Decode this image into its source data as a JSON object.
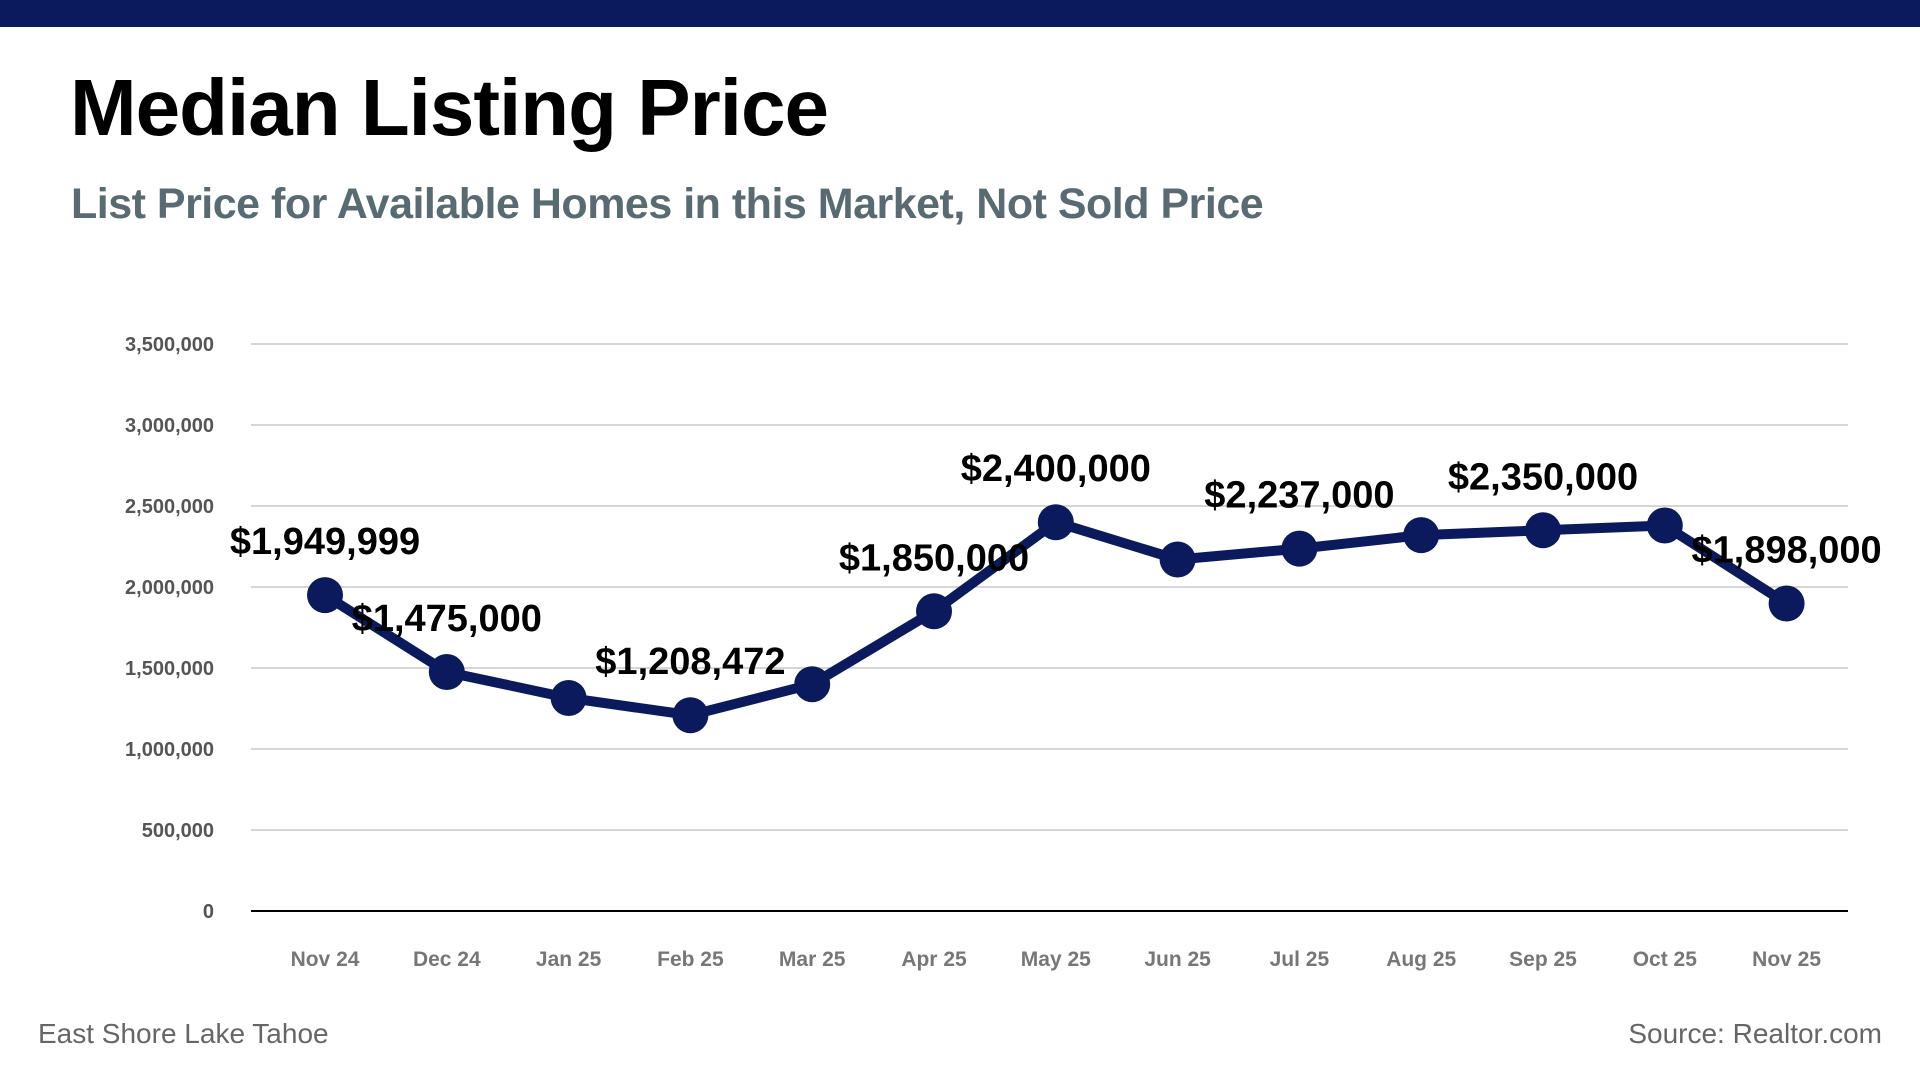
{
  "header": {
    "title": "Median Listing Price",
    "subtitle": "List Price for Available Homes in this Market, Not Sold Price"
  },
  "footer": {
    "location": "East Shore Lake Tahoe",
    "source": "Source: Realtor.com"
  },
  "colors": {
    "accent": "#0a1a5c",
    "grid": "#bdbdbd",
    "axis": "#000000"
  },
  "chart_data": {
    "type": "line",
    "title": "Median Listing Price",
    "xlabel": "",
    "ylabel": "",
    "ylim": [
      0,
      3500000
    ],
    "yticks": [
      0,
      500000,
      1000000,
      1500000,
      2000000,
      2500000,
      3000000,
      3500000
    ],
    "ytick_labels": [
      "0",
      "500,000",
      "1,000,000",
      "1,500,000",
      "2,000,000",
      "2,500,000",
      "3,000,000",
      "3,500,000"
    ],
    "grid": true,
    "categories": [
      "Nov 24",
      "Dec 24",
      "Jan 25",
      "Feb 25",
      "Mar 25",
      "Apr 25",
      "May 25",
      "Jun 25",
      "Jul 25",
      "Aug 25",
      "Sep 25",
      "Oct 25",
      "Nov 25"
    ],
    "series": [
      {
        "name": "Median Listing Price",
        "values": [
          1949999,
          1475000,
          1315000,
          1208472,
          1400000,
          1850000,
          2400000,
          2170000,
          2237000,
          2320000,
          2350000,
          2380000,
          1898000
        ]
      }
    ],
    "data_labels": [
      "$1,949,999",
      "$1,475,000",
      "",
      "$1,208,472",
      "",
      "$1,850,000",
      "$2,400,000",
      "",
      "$2,237,000",
      "",
      "$2,350,000",
      "",
      "$1,898,000"
    ]
  }
}
